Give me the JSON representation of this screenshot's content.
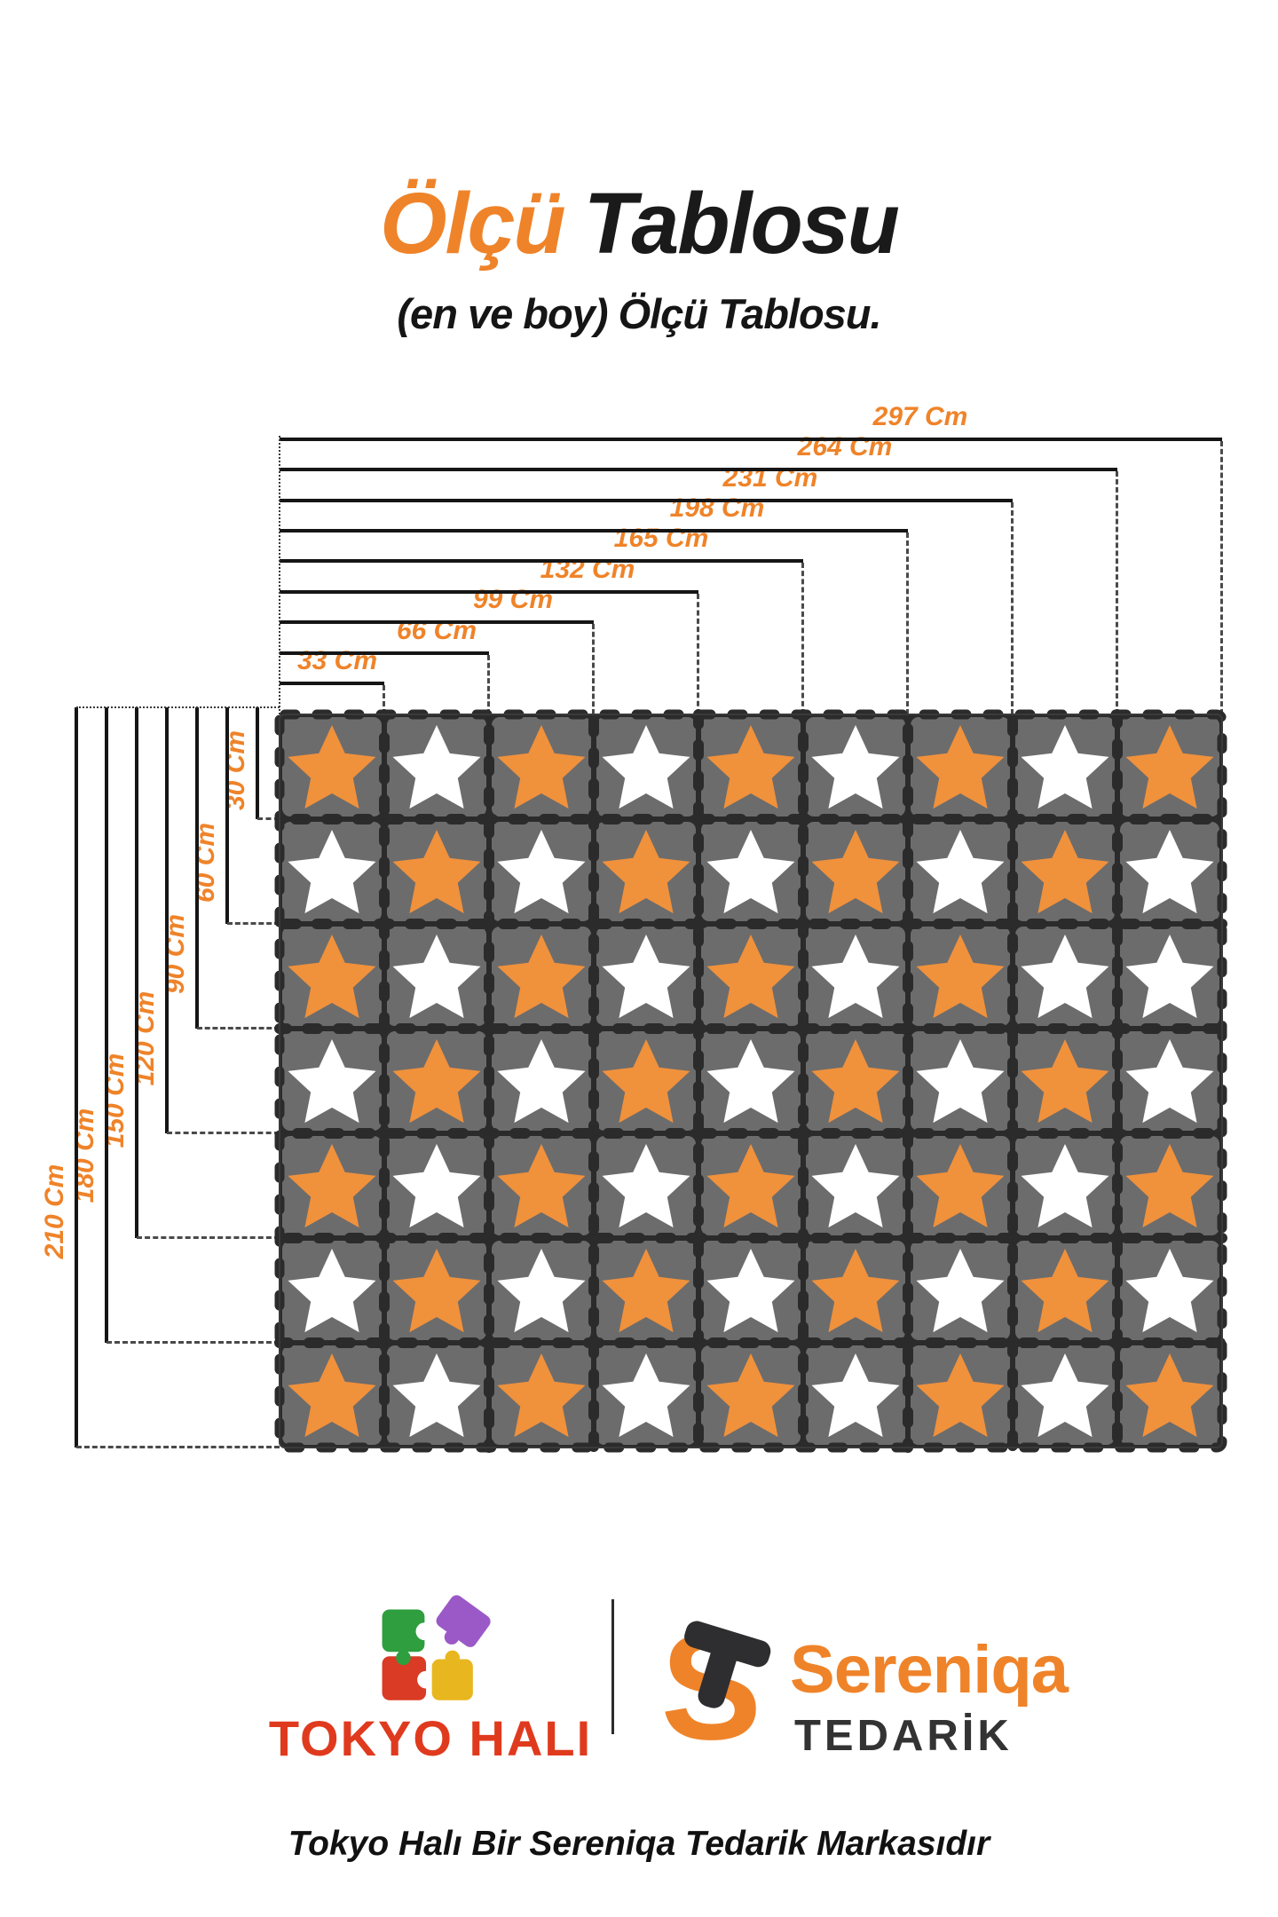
{
  "title": {
    "part1": "Ölçü",
    "part2": "Tablosu"
  },
  "subtitle": "(en ve boy) Ölçü Tablosu.",
  "size_chart": {
    "unit": "Cm",
    "width_labels": [
      "33 Cm",
      "66 Cm",
      "99 Cm",
      "132 Cm",
      "165 Cm",
      "198 Cm",
      "231 Cm",
      "264 Cm",
      "297 Cm"
    ],
    "widths_cm": [
      33,
      66,
      99,
      132,
      165,
      198,
      231,
      264,
      297
    ],
    "height_labels": [
      "30 Cm",
      "60 Cm",
      "90 Cm",
      "120 Cm",
      "150 Cm",
      "180 Cm",
      "210 Cm"
    ],
    "heights_cm": [
      30,
      60,
      90,
      120,
      150,
      180,
      210
    ]
  },
  "mat": {
    "cols": 9,
    "rows": 7,
    "pattern_rows": [
      "OWOWOWOWO",
      "WOWOWOWOW",
      "OWOWOWOWW",
      "WOWOWOWOW",
      "OWOWOWOWO",
      "WOWOWOWOW",
      "OWOWOWOWO"
    ],
    "legend": {
      "O": "orange-star-tile",
      "W": "white-star-tile"
    }
  },
  "colors": {
    "accent_orange": "#EF8329",
    "star_orange": "#F0913C",
    "star_white": "#FFFFFF",
    "tile_gray": "#6C6C6C",
    "seam_dark": "#2B2B2B",
    "dimension_line": "#151515",
    "tokyo_red": "#E03A1E",
    "logo_green": "#2E9E3E",
    "logo_purple": "#9B59C7",
    "logo_yellow": "#E8B61E",
    "tedarik_dark": "#333333"
  },
  "brands": {
    "tokyo_hali": "TOKYO HALI",
    "sereniqa": "Sereniqa",
    "tedarik": "TEDARİK"
  },
  "footer_note": "Tokyo Halı Bir Sereniqa Tedarik Markasıdır"
}
